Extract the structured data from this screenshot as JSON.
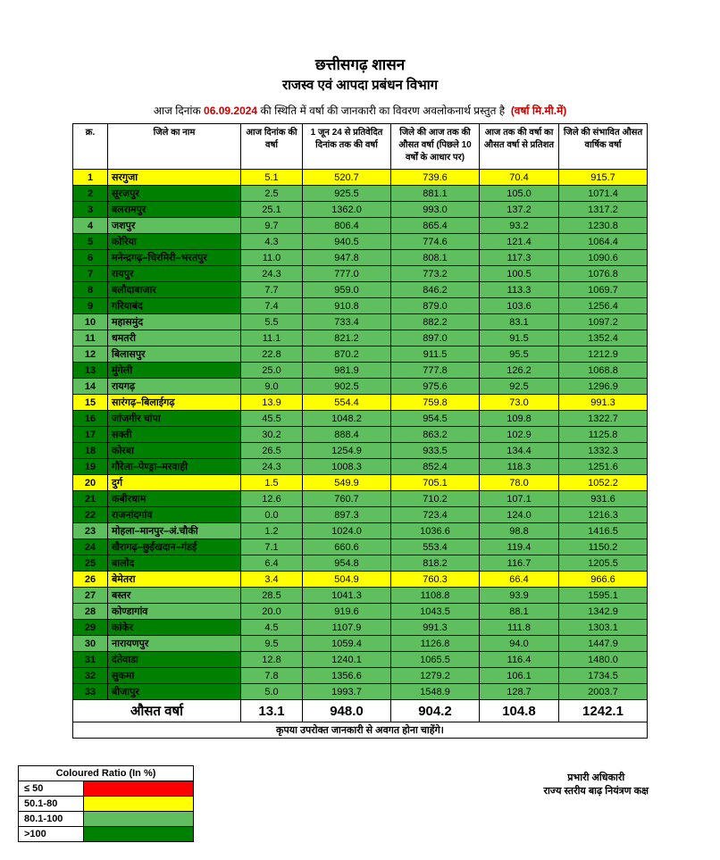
{
  "header": {
    "line1": "छत्तीसगढ़ शासन",
    "line2": "राजस्व एवं आपदा प्रबंधन विभाग",
    "intro_pre": "आज दिनांक ",
    "date": "06.09.2024",
    "intro_post": " की स्थिति में वर्षा की जानकारी का विवरण अवलोकनार्थ प्रस्तुत है ",
    "unit": "(वर्षा मि.मी.में)"
  },
  "columns": {
    "c1": "क्र.",
    "c2": "जिले का नाम",
    "c3": "आज दिनांक की वर्षा",
    "c4": "1 जून 24 से प्रतिवेदित दिनांक तक की वर्षा",
    "c5": "जिले की आज तक की औसत वर्षा (पिछले 10 वर्षों के आधार पर)",
    "c6": "आज तक की वर्षा का औसत वर्षा से प्रतिशत",
    "c7": "जिले की संभावित औसत वार्षिक वर्षा"
  },
  "rows": [
    {
      "sn": "1",
      "name": "सरगुजा",
      "c3": "5.1",
      "c4": "520.7",
      "c5": "739.6",
      "c6": "70.4",
      "c7": "915.7",
      "nc": "#ffff00",
      "vc": "#ffff00"
    },
    {
      "sn": "2",
      "name": "सूरजपुर",
      "c3": "2.5",
      "c4": "925.5",
      "c5": "881.1",
      "c6": "105.0",
      "c7": "1071.4",
      "nc": "#008000",
      "vc": "#5fbf5f"
    },
    {
      "sn": "3",
      "name": "बलरामपुर",
      "c3": "25.1",
      "c4": "1362.0",
      "c5": "993.0",
      "c6": "137.2",
      "c7": "1317.2",
      "nc": "#008000",
      "vc": "#5fbf5f"
    },
    {
      "sn": "4",
      "name": "जशपुर",
      "c3": "9.7",
      "c4": "806.4",
      "c5": "865.4",
      "c6": "93.2",
      "c7": "1230.8",
      "nc": "#5fbf5f",
      "vc": "#5fbf5f"
    },
    {
      "sn": "5",
      "name": "कोरिया",
      "c3": "4.3",
      "c4": "940.5",
      "c5": "774.6",
      "c6": "121.4",
      "c7": "1064.4",
      "nc": "#008000",
      "vc": "#5fbf5f"
    },
    {
      "sn": "6",
      "name": "मनेन्द्रगढ़–चिरमिरी–भरतपुर",
      "c3": "11.0",
      "c4": "947.8",
      "c5": "808.1",
      "c6": "117.3",
      "c7": "1090.6",
      "nc": "#008000",
      "vc": "#5fbf5f"
    },
    {
      "sn": "7",
      "name": "रायपुर",
      "c3": "24.3",
      "c4": "777.0",
      "c5": "773.2",
      "c6": "100.5",
      "c7": "1076.8",
      "nc": "#008000",
      "vc": "#5fbf5f"
    },
    {
      "sn": "8",
      "name": "बलौदाबाजार",
      "c3": "7.7",
      "c4": "959.0",
      "c5": "846.2",
      "c6": "113.3",
      "c7": "1069.7",
      "nc": "#008000",
      "vc": "#5fbf5f"
    },
    {
      "sn": "9",
      "name": "गरियाबंद",
      "c3": "7.4",
      "c4": "910.8",
      "c5": "879.0",
      "c6": "103.6",
      "c7": "1256.4",
      "nc": "#008000",
      "vc": "#5fbf5f"
    },
    {
      "sn": "10",
      "name": "महासमुंद",
      "c3": "5.5",
      "c4": "733.4",
      "c5": "882.2",
      "c6": "83.1",
      "c7": "1097.2",
      "nc": "#5fbf5f",
      "vc": "#5fbf5f"
    },
    {
      "sn": "11",
      "name": "धमतरी",
      "c3": "11.1",
      "c4": "821.2",
      "c5": "897.0",
      "c6": "91.5",
      "c7": "1352.4",
      "nc": "#5fbf5f",
      "vc": "#5fbf5f"
    },
    {
      "sn": "12",
      "name": "बिलासपुर",
      "c3": "22.8",
      "c4": "870.2",
      "c5": "911.5",
      "c6": "95.5",
      "c7": "1212.9",
      "nc": "#5fbf5f",
      "vc": "#5fbf5f"
    },
    {
      "sn": "13",
      "name": "मुंगेली",
      "c3": "25.0",
      "c4": "981.9",
      "c5": "777.8",
      "c6": "126.2",
      "c7": "1068.8",
      "nc": "#008000",
      "vc": "#5fbf5f"
    },
    {
      "sn": "14",
      "name": "रायगढ़",
      "c3": "9.0",
      "c4": "902.5",
      "c5": "975.6",
      "c6": "92.5",
      "c7": "1296.9",
      "nc": "#5fbf5f",
      "vc": "#5fbf5f"
    },
    {
      "sn": "15",
      "name": "सारंगढ़–बिलाईगढ़",
      "c3": "13.9",
      "c4": "554.4",
      "c5": "759.8",
      "c6": "73.0",
      "c7": "991.3",
      "nc": "#ffff00",
      "vc": "#ffff00"
    },
    {
      "sn": "16",
      "name": "जांजगीर चांपा",
      "c3": "45.5",
      "c4": "1048.2",
      "c5": "954.5",
      "c6": "109.8",
      "c7": "1322.7",
      "nc": "#008000",
      "vc": "#5fbf5f"
    },
    {
      "sn": "17",
      "name": "सक्ती",
      "c3": "30.2",
      "c4": "888.4",
      "c5": "863.2",
      "c6": "102.9",
      "c7": "1125.8",
      "nc": "#008000",
      "vc": "#5fbf5f"
    },
    {
      "sn": "18",
      "name": "कोरबा",
      "c3": "26.5",
      "c4": "1254.9",
      "c5": "933.5",
      "c6": "134.4",
      "c7": "1332.3",
      "nc": "#008000",
      "vc": "#5fbf5f"
    },
    {
      "sn": "19",
      "name": "गौरेला–पेण्ड्रा–मरवाही",
      "c3": "24.3",
      "c4": "1008.3",
      "c5": "852.4",
      "c6": "118.3",
      "c7": "1251.6",
      "nc": "#008000",
      "vc": "#5fbf5f"
    },
    {
      "sn": "20",
      "name": "दुर्ग",
      "c3": "1.5",
      "c4": "549.9",
      "c5": "705.1",
      "c6": "78.0",
      "c7": "1052.2",
      "nc": "#ffff00",
      "vc": "#ffff00"
    },
    {
      "sn": "21",
      "name": "कबीरधाम",
      "c3": "12.6",
      "c4": "760.7",
      "c5": "710.2",
      "c6": "107.1",
      "c7": "931.6",
      "nc": "#008000",
      "vc": "#5fbf5f"
    },
    {
      "sn": "22",
      "name": "राजनांदगांव",
      "c3": "0.0",
      "c4": "897.3",
      "c5": "723.4",
      "c6": "124.0",
      "c7": "1216.3",
      "nc": "#008000",
      "vc": "#5fbf5f"
    },
    {
      "sn": "23",
      "name": "मोहला–मानपुर–अं.चौकी",
      "c3": "1.2",
      "c4": "1024.0",
      "c5": "1036.6",
      "c6": "98.8",
      "c7": "1416.5",
      "nc": "#5fbf5f",
      "vc": "#5fbf5f"
    },
    {
      "sn": "24",
      "name": "खैरागढ़–छुईखदान–गंडई",
      "c3": "7.1",
      "c4": "660.6",
      "c5": "553.4",
      "c6": "119.4",
      "c7": "1150.2",
      "nc": "#008000",
      "vc": "#5fbf5f"
    },
    {
      "sn": "25",
      "name": "बालोद",
      "c3": "6.4",
      "c4": "954.8",
      "c5": "818.2",
      "c6": "116.7",
      "c7": "1205.5",
      "nc": "#008000",
      "vc": "#5fbf5f"
    },
    {
      "sn": "26",
      "name": "बेमेतरा",
      "c3": "3.4",
      "c4": "504.9",
      "c5": "760.3",
      "c6": "66.4",
      "c7": "966.6",
      "nc": "#ffff00",
      "vc": "#ffff00"
    },
    {
      "sn": "27",
      "name": "बस्तर",
      "c3": "28.5",
      "c4": "1041.3",
      "c5": "1108.8",
      "c6": "93.9",
      "c7": "1595.1",
      "nc": "#5fbf5f",
      "vc": "#5fbf5f"
    },
    {
      "sn": "28",
      "name": "कोण्डागांव",
      "c3": "20.0",
      "c4": "919.6",
      "c5": "1043.5",
      "c6": "88.1",
      "c7": "1342.9",
      "nc": "#5fbf5f",
      "vc": "#5fbf5f"
    },
    {
      "sn": "29",
      "name": "कांकेर",
      "c3": "4.5",
      "c4": "1107.9",
      "c5": "991.3",
      "c6": "111.8",
      "c7": "1303.1",
      "nc": "#008000",
      "vc": "#5fbf5f"
    },
    {
      "sn": "30",
      "name": "नारायणपुर",
      "c3": "9.5",
      "c4": "1059.4",
      "c5": "1126.8",
      "c6": "94.0",
      "c7": "1447.9",
      "nc": "#5fbf5f",
      "vc": "#5fbf5f"
    },
    {
      "sn": "31",
      "name": "दंतेवाडा",
      "c3": "12.8",
      "c4": "1240.1",
      "c5": "1065.5",
      "c6": "116.4",
      "c7": "1480.0",
      "nc": "#008000",
      "vc": "#5fbf5f"
    },
    {
      "sn": "32",
      "name": "सुकमा",
      "c3": "7.8",
      "c4": "1356.6",
      "c5": "1279.2",
      "c6": "106.1",
      "c7": "1734.5",
      "nc": "#008000",
      "vc": "#5fbf5f"
    },
    {
      "sn": "33",
      "name": "बीजापुर",
      "c3": "5.0",
      "c4": "1993.7",
      "c5": "1548.9",
      "c6": "128.7",
      "c7": "2003.7",
      "nc": "#008000",
      "vc": "#5fbf5f"
    }
  ],
  "avg": {
    "label": "औसत वर्षा",
    "c3": "13.1",
    "c4": "948.0",
    "c5": "904.2",
    "c6": "104.8",
    "c7": "1242.1"
  },
  "note": "कृपया उपरोक्त जानकारी से अवगत होना चाहेंगे।",
  "legend": {
    "title": "Coloured Ratio (In %)",
    "items": [
      {
        "label": "≤ 50",
        "color": "#ff0000"
      },
      {
        "label": "50.1-80",
        "color": "#ffff00"
      },
      {
        "label": "80.1-100",
        "color": "#5fbf5f"
      },
      {
        "label": ">100",
        "color": "#008000"
      }
    ]
  },
  "sign": {
    "line1": "प्रभारी अधिकारी",
    "line2": "राज्य स्तरीय बाढ़ नियंत्रण कक्ष"
  },
  "col_widths": {
    "c1": 30,
    "c2": 140,
    "c3": 60,
    "c4": 90,
    "c5": 90,
    "c6": 80,
    "c7": 90
  }
}
